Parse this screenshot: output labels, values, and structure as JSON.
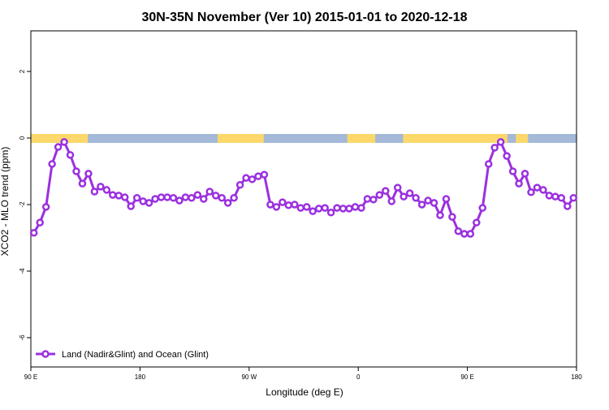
{
  "chart_data": {
    "type": "line",
    "title": "30N-35N November (Ver 10)   2015-01-01 to 2020-12-18",
    "x_label": "Longitude (deg E)",
    "y_label": "XCO2 - MLO trend (ppm)",
    "xlim": [
      90,
      540
    ],
    "ylim": [
      -6.88,
      3.22
    ],
    "xticks": [
      {
        "value": 90,
        "label": "90 E"
      },
      180,
      {
        "value": 270,
        "label": "90 W"
      },
      {
        "value": 360,
        "label": "0"
      },
      {
        "value": 450,
        "label": "90 E"
      },
      {
        "value": 540,
        "label": "180"
      }
    ],
    "yticks": [
      2,
      0,
      -2,
      -4,
      -6
    ],
    "legend": "bottom-left",
    "land_ocean_strip": {
      "land_color": "#fcd86b",
      "ocean_color": "#a4b9d8",
      "land_ranges": [
        [
          90,
          137
        ],
        [
          244,
          282
        ],
        [
          351,
          374
        ],
        [
          397,
          483
        ],
        [
          490,
          500
        ]
      ]
    },
    "x": [
      92.5,
      97.5,
      102.5,
      107.5,
      112.5,
      117.5,
      122.5,
      127.5,
      132.5,
      137.5,
      142.5,
      147.5,
      152.5,
      157.5,
      162.5,
      167.5,
      172.5,
      177.5,
      182.5,
      187.5,
      192.5,
      197.5,
      202.5,
      207.5,
      212.5,
      217.5,
      222.5,
      227.5,
      232.5,
      237.5,
      242.5,
      247.5,
      252.5,
      257.5,
      262.5,
      267.5,
      272.5,
      277.5,
      282.5,
      287.5,
      292.5,
      297.5,
      302.5,
      307.5,
      312.5,
      317.5,
      322.5,
      327.5,
      332.5,
      337.5,
      342.5,
      347.5,
      352.5,
      357.5,
      362.5,
      367.5,
      372.5,
      377.5,
      382.5,
      387.5,
      392.5,
      397.5,
      402.5,
      407.5,
      412.5,
      417.5,
      422.5,
      427.5,
      432.5,
      437.5,
      442.5,
      447.5,
      452.5,
      457.5,
      462.5,
      467.5,
      472.5,
      477.5,
      482.5,
      487.5,
      492.5,
      497.5,
      502.5,
      507.5,
      512.5,
      517.5,
      522.5,
      527.5,
      532.5,
      537.5
    ],
    "series": [
      {
        "name": "Land (Nadir&Glint) and Ocean (Glint)",
        "color": "#9b30e0",
        "values": [
          -2.85,
          -2.54,
          -2.07,
          -0.78,
          -0.27,
          -0.12,
          -0.51,
          -1.0,
          -1.37,
          -1.07,
          -1.61,
          -1.46,
          -1.56,
          -1.71,
          -1.73,
          -1.78,
          -2.05,
          -1.8,
          -1.9,
          -1.95,
          -1.83,
          -1.78,
          -1.78,
          -1.8,
          -1.88,
          -1.78,
          -1.8,
          -1.71,
          -1.83,
          -1.61,
          -1.73,
          -1.8,
          -1.95,
          -1.8,
          -1.41,
          -1.2,
          -1.24,
          -1.15,
          -1.1,
          -2.0,
          -2.07,
          -1.93,
          -2.02,
          -2.0,
          -2.1,
          -2.07,
          -2.2,
          -2.12,
          -2.1,
          -2.24,
          -2.1,
          -2.12,
          -2.12,
          -2.07,
          -2.1,
          -1.83,
          -1.85,
          -1.71,
          -1.59,
          -1.9,
          -1.49,
          -1.76,
          -1.66,
          -1.8,
          -2.0,
          -1.88,
          -1.95,
          -2.32,
          -1.83,
          -2.37,
          -2.8,
          -2.88,
          -2.88,
          -2.54,
          -2.1,
          -0.78,
          -0.29,
          -0.12,
          -0.54,
          -1.0,
          -1.37,
          -1.07,
          -1.63,
          -1.49,
          -1.56,
          -1.73,
          -1.76,
          -1.8,
          -2.05,
          -1.8
        ]
      }
    ]
  }
}
